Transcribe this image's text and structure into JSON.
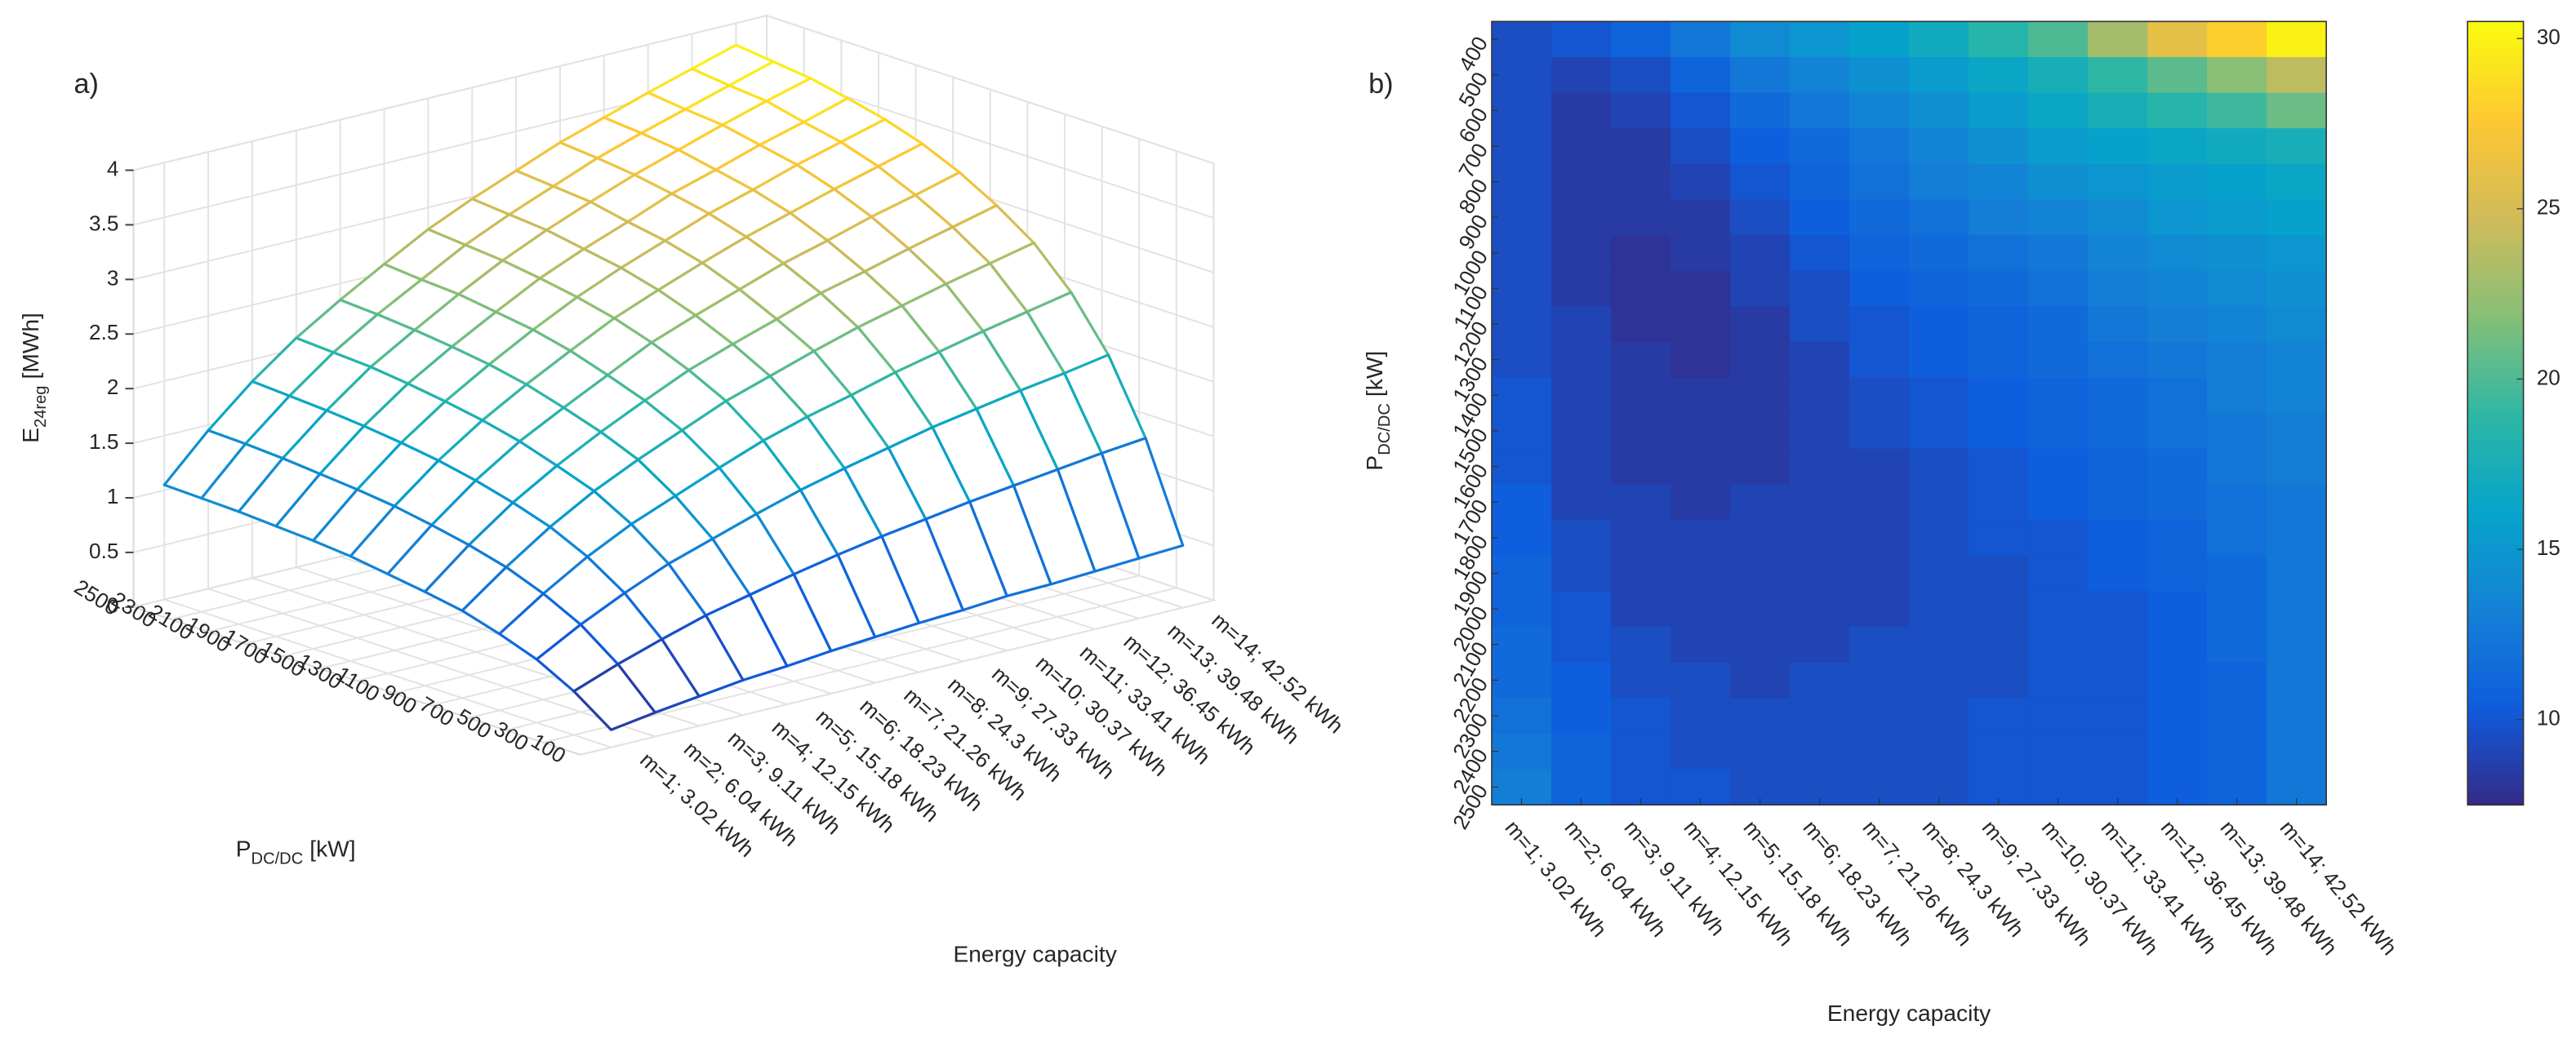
{
  "chart_data": [
    {
      "type": "surface3d",
      "panel": "a)",
      "categories": [
        "m=1; 3.02 kWh",
        "m=2; 6.04 kWh",
        "m=3; 9.11 kWh",
        "m=4; 12.15 kWh",
        "m=5; 15.18 kWh",
        "m=6; 18.23 kWh",
        "m=7; 21.26 kWh",
        "m=8; 24.3 kWh",
        "m=9; 27.33 kWh",
        "m=10; 30.37 kWh",
        "m=11; 33.41 kWh",
        "m=12; 36.45 kWh",
        "m=13; 39.48 kWh",
        "m=14; 42.52 kWh"
      ],
      "y": [
        100,
        300,
        500,
        700,
        900,
        1100,
        1300,
        1500,
        1700,
        1900,
        2100,
        2300,
        2500
      ],
      "ylim": [
        100,
        2500
      ],
      "values": [
        [
          0.16,
          0.22,
          0.27,
          0.32,
          0.35,
          0.39,
          0.42,
          0.45,
          0.47,
          0.5,
          0.51,
          0.53,
          0.55,
          0.57
        ],
        [
          0.4,
          0.55,
          0.68,
          0.8,
          0.89,
          0.98,
          1.06,
          1.13,
          1.19,
          1.25,
          1.3,
          1.35,
          1.4,
          1.44
        ],
        [
          0.58,
          0.8,
          0.99,
          1.16,
          1.29,
          1.42,
          1.54,
          1.64,
          1.73,
          1.82,
          1.89,
          1.96,
          2.02,
          2.09
        ],
        [
          0.7,
          0.97,
          1.21,
          1.41,
          1.57,
          1.73,
          1.88,
          2.0,
          2.1,
          2.21,
          2.3,
          2.39,
          2.47,
          2.55
        ],
        [
          0.8,
          1.1,
          1.37,
          1.6,
          1.79,
          1.96,
          2.13,
          2.26,
          2.39,
          2.51,
          2.61,
          2.71,
          2.8,
          2.89
        ],
        [
          0.86,
          1.19,
          1.48,
          1.72,
          1.93,
          2.12,
          2.3,
          2.44,
          2.57,
          2.71,
          2.81,
          2.92,
          3.02,
          3.12
        ],
        [
          0.91,
          1.26,
          1.57,
          1.83,
          2.04,
          2.24,
          2.44,
          2.59,
          2.73,
          2.87,
          2.98,
          3.1,
          3.2,
          3.31
        ],
        [
          0.96,
          1.32,
          1.64,
          1.91,
          2.14,
          2.35,
          2.55,
          2.71,
          2.86,
          3.0,
          3.12,
          3.24,
          3.35,
          3.46
        ],
        [
          0.99,
          1.36,
          1.69,
          1.97,
          2.21,
          2.43,
          2.63,
          2.8,
          2.95,
          3.1,
          3.22,
          3.35,
          3.46,
          3.57
        ],
        [
          1.01,
          1.39,
          1.73,
          2.02,
          2.26,
          2.48,
          2.69,
          2.86,
          3.01,
          3.17,
          3.29,
          3.42,
          3.53,
          3.65
        ],
        [
          1.03,
          1.42,
          1.76,
          2.06,
          2.3,
          2.53,
          2.74,
          2.92,
          3.08,
          3.23,
          3.36,
          3.49,
          3.61,
          3.72
        ],
        [
          1.04,
          1.44,
          1.78,
          2.08,
          2.33,
          2.55,
          2.77,
          2.95,
          3.11,
          3.27,
          3.4,
          3.52,
          3.64,
          3.76
        ],
        [
          1.05,
          1.45,
          1.8,
          2.1,
          2.35,
          2.58,
          2.8,
          2.98,
          3.14,
          3.3,
          3.43,
          3.56,
          3.68,
          3.8
        ]
      ],
      "zlim": [
        0,
        4
      ],
      "zticks": [
        0,
        0.5,
        1,
        1.5,
        2,
        2.5,
        3,
        3.5,
        4
      ],
      "grid": true,
      "xlabel": "Energy capacity",
      "ylabel": "P",
      "ylabel_sub": "DC/DC",
      "ylabel_unit": "[kW]",
      "zlabel": "E",
      "zlabel_sub": "24reg",
      "zlabel_unit": "[MWh]",
      "colormap": [
        "#352a87",
        "#0f5cdd",
        "#1481d6",
        "#06a4ca",
        "#2eb7a4",
        "#87bf77",
        "#d1bb59",
        "#fec832",
        "#f9fb0e"
      ]
    },
    {
      "type": "heatmap",
      "panel": "b)",
      "categories": [
        "m=1; 3.02 kWh",
        "m=2; 6.04 kWh",
        "m=3; 9.11 kWh",
        "m=4; 12.15 kWh",
        "m=5; 15.18 kWh",
        "m=6; 18.23 kWh",
        "m=7; 21.26 kWh",
        "m=8; 24.3 kWh",
        "m=9; 27.33 kWh",
        "m=10; 30.37 kWh",
        "m=11; 33.41 kWh",
        "m=12; 36.45 kWh",
        "m=13; 39.48 kWh",
        "m=14; 42.52 kWh"
      ],
      "y": [
        400,
        500,
        600,
        700,
        800,
        900,
        1000,
        1100,
        1200,
        1300,
        1400,
        1500,
        1600,
        1700,
        1800,
        1900,
        2000,
        2100,
        2200,
        2300,
        2400,
        2500
      ],
      "values": [
        [
          9.5,
          10,
          11,
          12.5,
          14,
          15,
          16,
          17,
          18.5,
          20,
          23,
          26,
          28,
          30
        ],
        [
          9.5,
          9,
          9.5,
          11,
          12.5,
          13.5,
          14.5,
          15.5,
          16.5,
          17.5,
          19,
          20.5,
          22,
          24
        ],
        [
          9.5,
          8.5,
          9,
          10,
          11.5,
          12.5,
          13.5,
          14.5,
          15.5,
          16.5,
          17.5,
          18.5,
          19.5,
          21
        ],
        [
          9.5,
          8.5,
          8.5,
          9.5,
          10.5,
          11.5,
          12.5,
          13.5,
          14.5,
          15.5,
          16,
          16.5,
          17,
          17.5
        ],
        [
          9.5,
          8.5,
          8.5,
          9,
          10,
          11,
          12,
          13,
          13.5,
          14.5,
          15,
          15.5,
          16,
          16.5
        ],
        [
          9.5,
          8.5,
          8.5,
          8.5,
          9.5,
          10.5,
          11.5,
          12,
          13,
          13.5,
          14,
          15,
          15.5,
          16
        ],
        [
          9.5,
          8.5,
          8,
          8.5,
          9,
          10,
          11,
          11.5,
          12,
          12.5,
          13.5,
          14,
          14.5,
          15
        ],
        [
          9.5,
          8.5,
          8,
          8,
          9,
          9.5,
          10.5,
          11,
          11.5,
          12,
          13,
          13.5,
          14,
          14.5
        ],
        [
          9.5,
          9,
          8,
          8,
          8.5,
          9.5,
          10,
          10.5,
          11,
          11.5,
          12.5,
          13,
          13.5,
          14
        ],
        [
          9.5,
          9,
          8.5,
          8,
          8.5,
          9,
          10,
          10.5,
          11,
          11.5,
          12,
          12.5,
          13,
          13.5
        ],
        [
          10,
          9,
          8.5,
          8.5,
          8.5,
          9,
          9.5,
          10,
          10.5,
          11,
          11.5,
          12,
          13,
          13.5
        ],
        [
          10,
          9,
          8.5,
          8.5,
          8.5,
          9,
          9.5,
          10,
          10.5,
          11,
          11.5,
          12,
          12.5,
          13
        ],
        [
          10,
          9,
          8.5,
          8.5,
          8.5,
          9,
          9,
          9.5,
          10,
          10.5,
          11,
          11.5,
          12.5,
          13
        ],
        [
          10.5,
          9,
          9,
          8.5,
          9,
          9,
          9,
          9.5,
          10,
          10.5,
          11,
          11.5,
          12,
          12.5
        ],
        [
          10.5,
          9.5,
          9,
          9,
          9,
          9,
          9,
          9.5,
          10,
          10,
          10.5,
          11,
          12,
          12.5
        ],
        [
          11,
          9.5,
          9,
          9,
          9,
          9,
          9,
          9.5,
          9.5,
          10,
          10.5,
          11,
          11.5,
          12.5
        ],
        [
          11,
          10,
          9,
          9,
          9,
          9,
          9,
          9.5,
          9.5,
          10,
          10,
          10.5,
          11.5,
          12.5
        ],
        [
          11.5,
          10,
          9.5,
          9,
          9,
          9,
          9.5,
          9.5,
          9.5,
          10,
          10,
          10.5,
          11.5,
          12.5
        ],
        [
          11.5,
          10.5,
          9.5,
          9.5,
          9,
          9.5,
          9.5,
          9.5,
          9.5,
          10,
          10,
          10.5,
          11,
          12.5
        ],
        [
          12,
          10.5,
          10,
          9.5,
          9.5,
          9.5,
          9.5,
          9.5,
          10,
          10,
          10,
          10.5,
          11,
          12.5
        ],
        [
          12.5,
          11,
          10,
          9.5,
          9.5,
          9.5,
          9.5,
          9.5,
          10,
          10,
          10,
          10.5,
          11,
          12.5
        ],
        [
          13,
          11,
          10,
          10,
          9.5,
          9.5,
          9.5,
          9.5,
          10,
          10,
          10,
          10.5,
          11,
          12.5
        ]
      ],
      "clim": [
        7.5,
        30.5
      ],
      "cticks": [
        10,
        15,
        20,
        25,
        30
      ],
      "xlabel": "Energy capacity",
      "ylabel": "P",
      "ylabel_sub": "DC/DC",
      "ylabel_unit": "[kW]",
      "colormap": [
        "#352a87",
        "#0f5cdd",
        "#1481d6",
        "#06a4ca",
        "#2eb7a4",
        "#87bf77",
        "#d1bb59",
        "#fec832",
        "#f9fb0e"
      ]
    }
  ]
}
